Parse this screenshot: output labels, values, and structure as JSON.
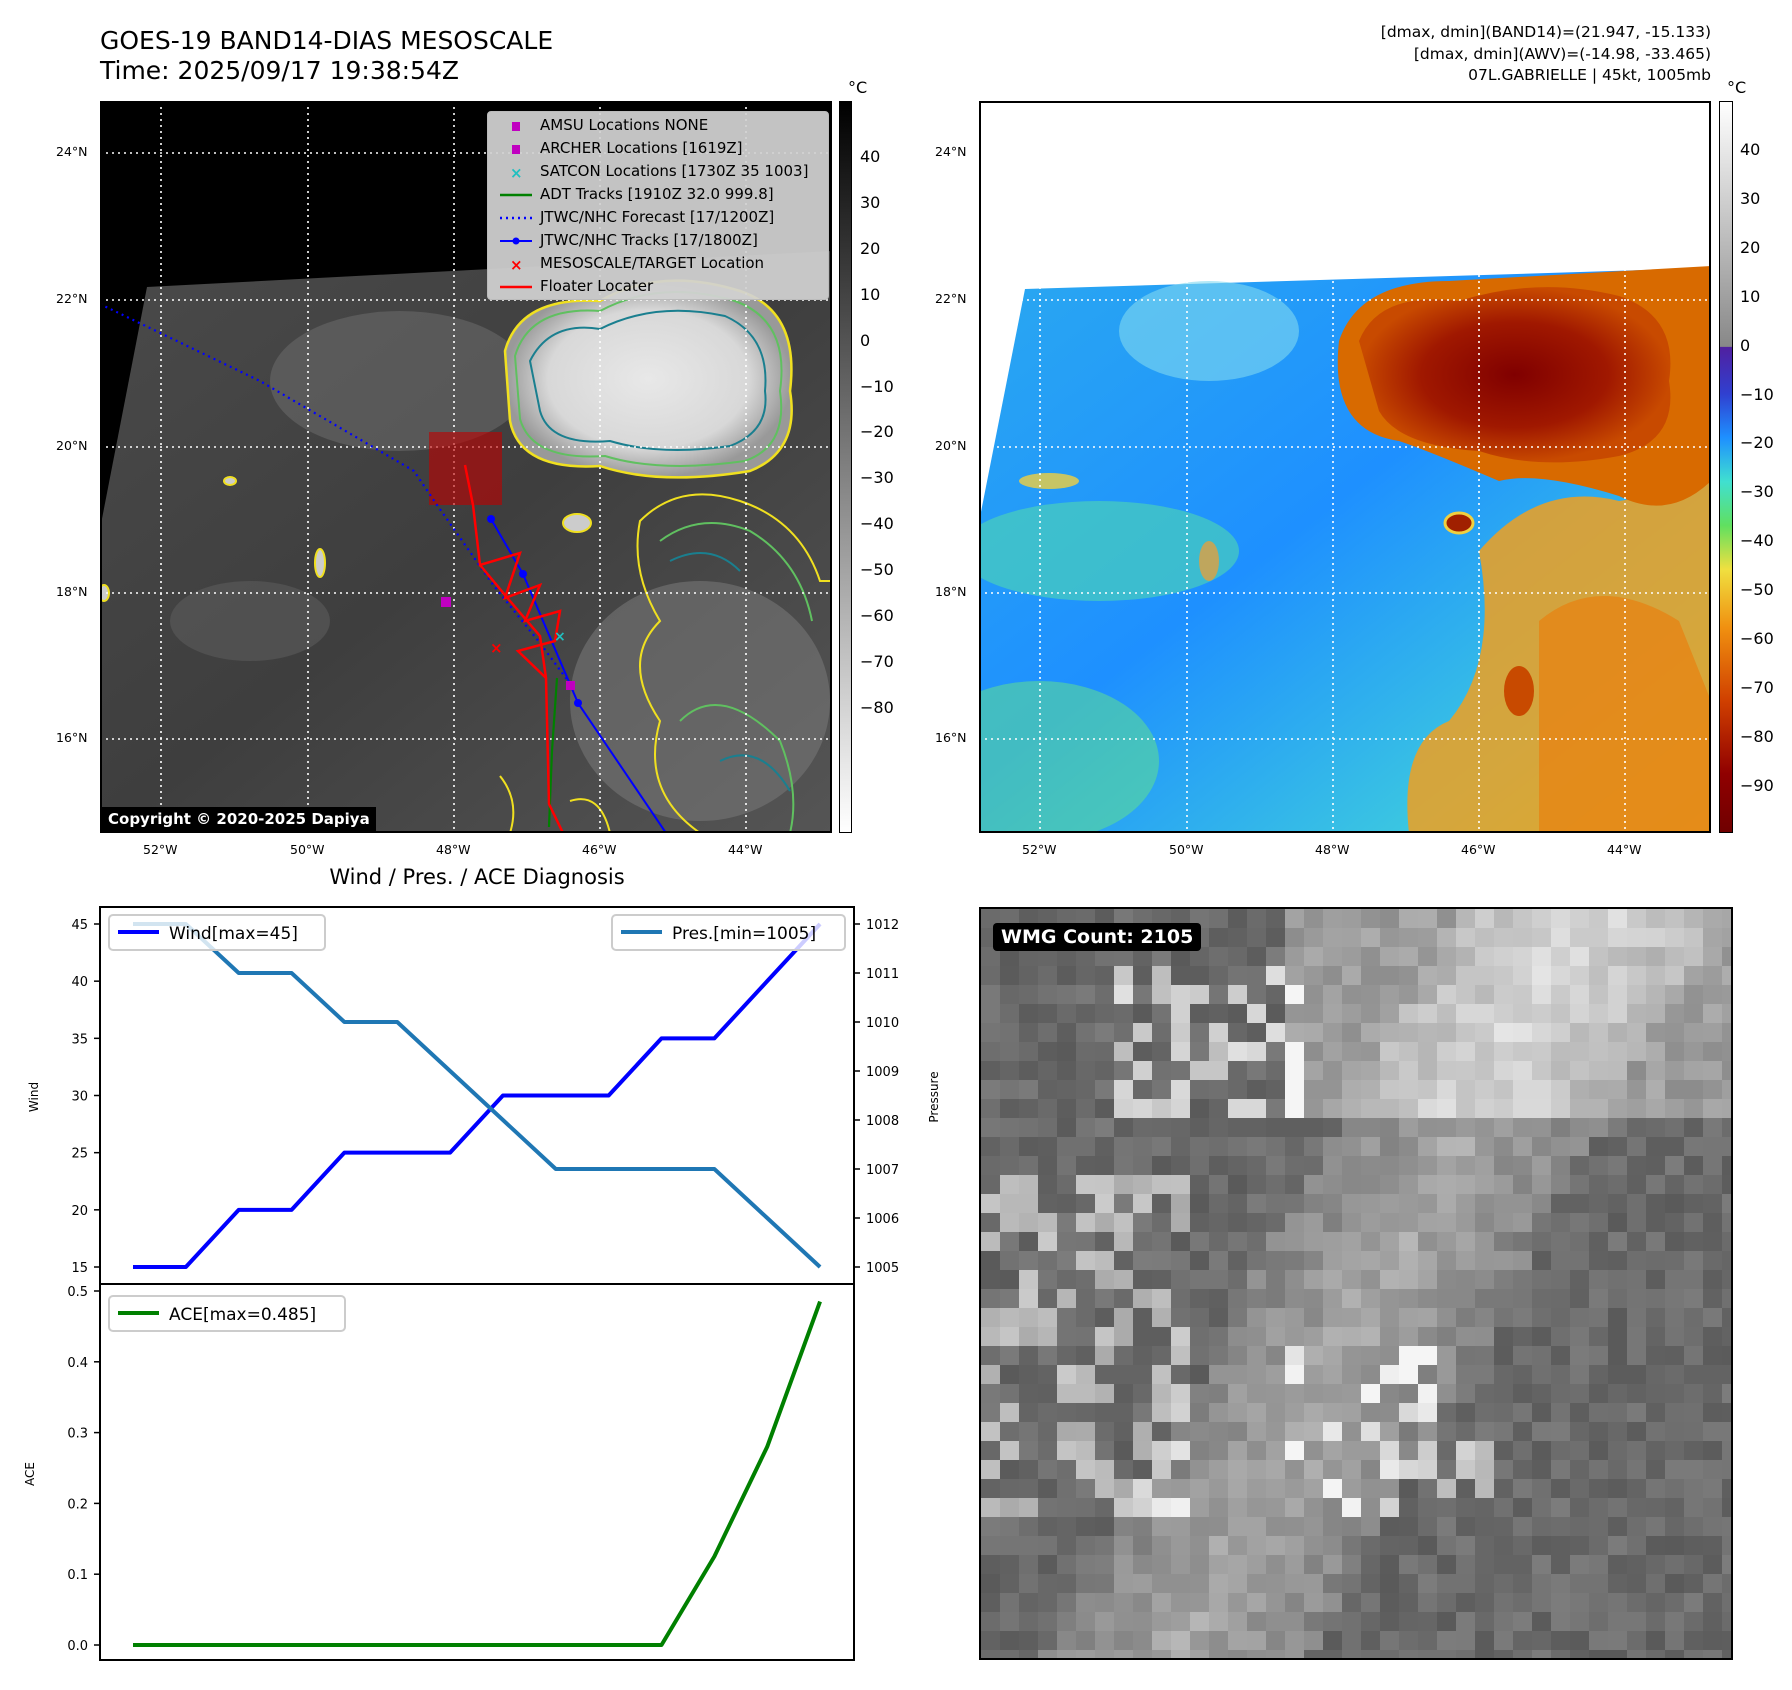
{
  "header": {
    "title_line1": "GOES-19 BAND14-DIAS MESOSCALE",
    "title_line2": "Time: 2025/09/17 19:38:54Z",
    "info_line1": "[dmax, dmin](BAND14)=(21.947, -15.133)",
    "info_line2": "[dmax, dmin](AWV)=(-14.98, -33.465)",
    "info_line3": "07L.GABRIELLE | 45kt, 1005mb"
  },
  "map": {
    "lat_labels": [
      "24°N",
      "22°N",
      "20°N",
      "18°N",
      "16°N"
    ],
    "lon_labels": [
      "52°W",
      "50°W",
      "48°W",
      "46°W",
      "44°W"
    ],
    "copyright": "Copyright © 2020-2025 Dapiya",
    "legend": [
      {
        "label": "AMSU Locations NONE",
        "color": "#c000c0",
        "marker": "square"
      },
      {
        "label": "ARCHER Locations [1619Z]",
        "color": "#c000c0",
        "marker": "square"
      },
      {
        "label": "SATCON Locations [1730Z 35 1003]",
        "color": "#20c0c0",
        "marker": "x"
      },
      {
        "label": "ADT Tracks [1910Z 32.0 999.8]",
        "color": "#008000",
        "marker": "line"
      },
      {
        "label": "JTWC/NHC Forecast [17/1200Z]",
        "color": "#0000ff",
        "marker": "dotted"
      },
      {
        "label": "JTWC/NHC Tracks [17/1800Z]",
        "color": "#0000ff",
        "marker": "line-dot"
      },
      {
        "label": "MESOSCALE/TARGET Location",
        "color": "#ff0000",
        "marker": "x"
      },
      {
        "label": "Floater Locater",
        "color": "#ff0000",
        "marker": "line"
      }
    ]
  },
  "colorbar_gray": {
    "unit": "°C",
    "ticks": [
      "40",
      "30",
      "20",
      "10",
      "0",
      "−10",
      "−20",
      "−30",
      "−40",
      "−50",
      "−60",
      "−70",
      "−80"
    ]
  },
  "colorbar_rainbow": {
    "unit": "°C",
    "ticks": [
      "40",
      "30",
      "20",
      "10",
      "0",
      "−10",
      "−20",
      "−30",
      "−40",
      "−50",
      "−60",
      "−70",
      "−80",
      "−90"
    ]
  },
  "wmg": {
    "label": "WMG Count: 2105"
  },
  "chart_data": {
    "type": "line",
    "title": "Wind / Pres. / ACE Diagnosis",
    "x_index": [
      0,
      1,
      2,
      3,
      4,
      5,
      6,
      7,
      8,
      9,
      10,
      11,
      12,
      13
    ],
    "series": [
      {
        "name": "Wind",
        "legend": "Wind[max=45]",
        "axis": "left",
        "color": "#0000ff",
        "values": [
          15,
          15,
          20,
          20,
          25,
          25,
          25,
          30,
          30,
          30,
          35,
          35,
          40,
          45
        ]
      },
      {
        "name": "Pressure",
        "legend": "Pres.[min=1005]",
        "axis": "right",
        "color": "#1f77b4",
        "values": [
          1012,
          1012,
          1011,
          1011,
          1010,
          1010,
          1009,
          1008,
          1007,
          1007,
          1007,
          1007,
          1006,
          1005
        ]
      },
      {
        "name": "ACE",
        "legend": "ACE[max=0.485]",
        "axis": "ace",
        "color": "#008000",
        "values": [
          0,
          0,
          0,
          0,
          0,
          0,
          0,
          0,
          0,
          0,
          0,
          0.125,
          0.28,
          0.485
        ]
      }
    ],
    "wind_axis": {
      "label": "Wind",
      "ticks": [
        15,
        20,
        25,
        30,
        35,
        40,
        45
      ],
      "ylim": [
        15,
        45
      ]
    },
    "pressure_axis": {
      "label": "Pressure",
      "ticks": [
        1005,
        1006,
        1007,
        1008,
        1009,
        1010,
        1011,
        1012
      ],
      "ylim": [
        1005,
        1012
      ]
    },
    "ace_axis": {
      "label": "ACE",
      "ticks": [
        "0.0",
        "0.1",
        "0.2",
        "0.3",
        "0.4",
        "0.5"
      ],
      "ylim": [
        0,
        0.5
      ]
    }
  }
}
